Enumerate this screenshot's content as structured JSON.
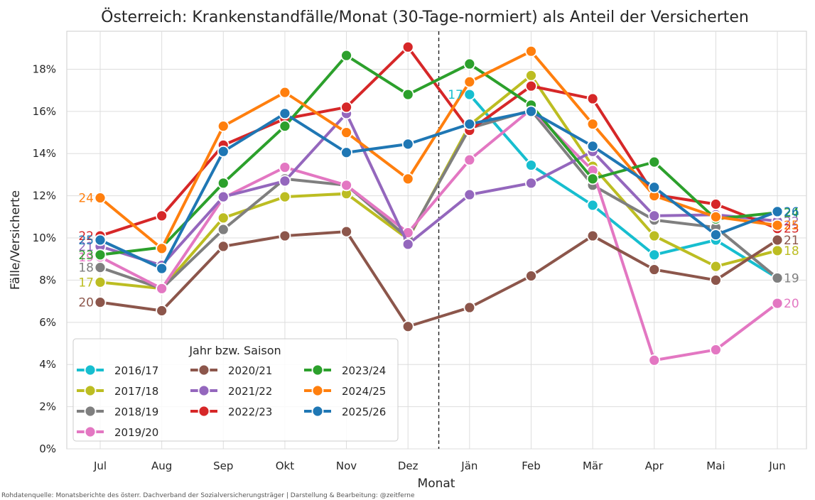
{
  "chart_data": {
    "type": "line",
    "title": "Österreich: Krankenstandfälle/Monat (30-Tage-normiert) als Anteil der Versicherten",
    "xlabel": "Monat",
    "ylabel": "Fälle/Versicherte",
    "categories": [
      "Jul",
      "Aug",
      "Sep",
      "Okt",
      "Nov",
      "Dez",
      "Jän",
      "Feb",
      "Mär",
      "Apr",
      "Mai",
      "Jun"
    ],
    "yticks": [
      "0%",
      "2%",
      "4%",
      "6%",
      "8%",
      "10%",
      "12%",
      "14%",
      "16%",
      "18%"
    ],
    "ylim": [
      0,
      19.8
    ],
    "grid": true,
    "year_boundary_between": [
      "Dez",
      "Jän"
    ],
    "legend": {
      "title": "Jahr bzw. Saison",
      "placement": "lower-left"
    },
    "series": [
      {
        "name": "2016/17",
        "color": "#17becf",
        "values": [
          null,
          null,
          null,
          null,
          null,
          null,
          16.8,
          13.45,
          11.55,
          9.2,
          9.9,
          8.1
        ],
        "start_label": "",
        "end_label": "17",
        "label_at": "Jän"
      },
      {
        "name": "2017/18",
        "color": "#bcbd22",
        "values": [
          7.9,
          7.6,
          10.95,
          11.95,
          12.1,
          9.95,
          15.35,
          17.7,
          13.4,
          10.1,
          8.65,
          9.4
        ],
        "start_label": "17",
        "end_label": "18"
      },
      {
        "name": "2018/19",
        "color": "#7f7f7f",
        "values": [
          8.6,
          7.6,
          10.4,
          12.8,
          12.5,
          10.0,
          15.2,
          16.05,
          12.5,
          10.85,
          10.5,
          8.1
        ],
        "start_label": "18",
        "end_label": "19"
      },
      {
        "name": "2019/20",
        "color": "#e377c2",
        "values": [
          9.1,
          7.6,
          11.9,
          13.35,
          12.5,
          10.25,
          13.7,
          16.1,
          13.2,
          4.2,
          4.7,
          6.9
        ],
        "start_label": "19",
        "end_label": "20"
      },
      {
        "name": "2020/21",
        "color": "#8c564b",
        "values": [
          6.95,
          6.55,
          9.6,
          10.1,
          10.3,
          5.8,
          6.7,
          8.2,
          10.1,
          8.5,
          8.0,
          9.9
        ],
        "start_label": "20",
        "end_label": "21"
      },
      {
        "name": "2021/22",
        "color": "#9467bd",
        "values": [
          9.6,
          8.7,
          11.95,
          12.7,
          15.9,
          9.7,
          12.05,
          12.6,
          14.1,
          11.05,
          11.1,
          10.8
        ],
        "start_label": "21",
        "end_label": "22"
      },
      {
        "name": "2022/23",
        "color": "#d62728",
        "values": [
          10.1,
          11.05,
          14.4,
          15.65,
          16.2,
          19.05,
          15.1,
          17.2,
          16.6,
          12.05,
          11.6,
          10.45
        ],
        "start_label": "22",
        "end_label": "23"
      },
      {
        "name": "2023/24",
        "color": "#2ca02c",
        "values": [
          9.2,
          9.55,
          12.6,
          15.3,
          18.65,
          16.8,
          18.25,
          16.3,
          12.8,
          13.6,
          10.9,
          11.2
        ],
        "start_label": "23",
        "end_label": "24"
      },
      {
        "name": "2024/25",
        "color": "#ff7f0e",
        "values": [
          11.9,
          9.5,
          15.3,
          16.9,
          15.0,
          12.8,
          17.4,
          18.85,
          15.4,
          12.0,
          11.0,
          10.6
        ],
        "start_label": "24",
        "end_label": "25"
      },
      {
        "name": "2025/26",
        "color": "#1f77b4",
        "values": [
          9.9,
          8.55,
          14.1,
          15.9,
          14.05,
          14.45,
          15.4,
          16.0,
          14.35,
          12.4,
          10.15,
          11.25
        ],
        "start_label": "25",
        "end_label": "26"
      }
    ]
  },
  "footer": {
    "source": "Rohdatenquelle: Monatsberichte des österr. Dachverband der Sozialversicherungsträger | Darstellung & Bearbeitung: @zeitferne"
  }
}
